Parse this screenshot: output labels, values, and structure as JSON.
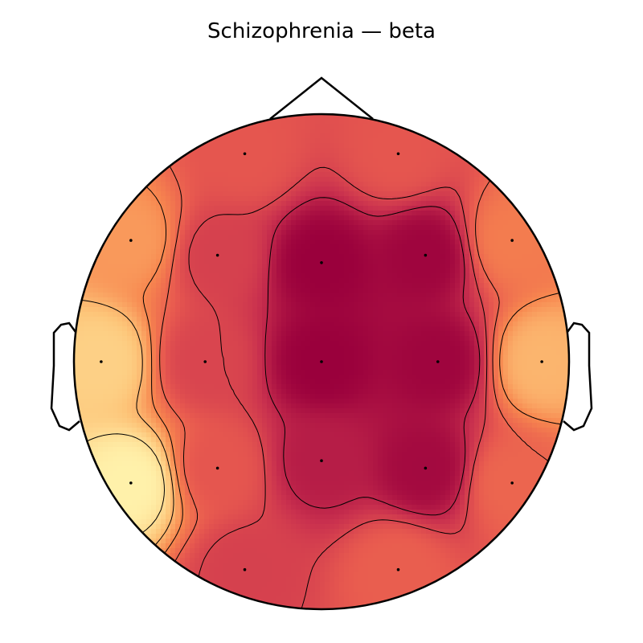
{
  "chart_data": {
    "type": "topomap",
    "title": "Schizophrenia — beta",
    "colormap": {
      "name": "magma-like",
      "stops": [
        "#9a003c",
        "#c9304e",
        "#e85a4f",
        "#f7874f",
        "#fdc478",
        "#fff6b0"
      ],
      "value_range": [
        0,
        1
      ]
    },
    "contour_levels": [
      0.15,
      0.3,
      0.45,
      0.6,
      0.75,
      0.9
    ],
    "grid": false,
    "legend": "none",
    "electrodes": [
      {
        "id": "Fp1",
        "x": -0.31,
        "y": 0.84,
        "value": 0.38
      },
      {
        "id": "Fp2",
        "x": 0.31,
        "y": 0.84,
        "value": 0.38
      },
      {
        "id": "F7",
        "x": -0.77,
        "y": 0.49,
        "value": 0.66
      },
      {
        "id": "F3",
        "x": -0.42,
        "y": 0.43,
        "value": 0.28
      },
      {
        "id": "Fz",
        "x": 0.0,
        "y": 0.4,
        "value": 0.0
      },
      {
        "id": "F4",
        "x": 0.42,
        "y": 0.43,
        "value": 0.02
      },
      {
        "id": "F8",
        "x": 0.77,
        "y": 0.49,
        "value": 0.55
      },
      {
        "id": "T3",
        "x": -0.89,
        "y": 0.0,
        "value": 0.85
      },
      {
        "id": "C3",
        "x": -0.47,
        "y": 0.0,
        "value": 0.3
      },
      {
        "id": "Cz",
        "x": 0.0,
        "y": 0.0,
        "value": 0.0
      },
      {
        "id": "C4",
        "x": 0.47,
        "y": 0.0,
        "value": 0.02
      },
      {
        "id": "T4",
        "x": 0.89,
        "y": 0.0,
        "value": 0.75
      },
      {
        "id": "T5",
        "x": -0.77,
        "y": -0.49,
        "value": 0.98
      },
      {
        "id": "P3",
        "x": -0.42,
        "y": -0.43,
        "value": 0.38
      },
      {
        "id": "Pz",
        "x": 0.0,
        "y": -0.4,
        "value": 0.12
      },
      {
        "id": "P4",
        "x": 0.42,
        "y": -0.43,
        "value": 0.04
      },
      {
        "id": "T6",
        "x": 0.77,
        "y": -0.49,
        "value": 0.45
      },
      {
        "id": "O1",
        "x": -0.31,
        "y": -0.84,
        "value": 0.28
      },
      {
        "id": "O2",
        "x": 0.31,
        "y": -0.84,
        "value": 0.42
      }
    ]
  }
}
